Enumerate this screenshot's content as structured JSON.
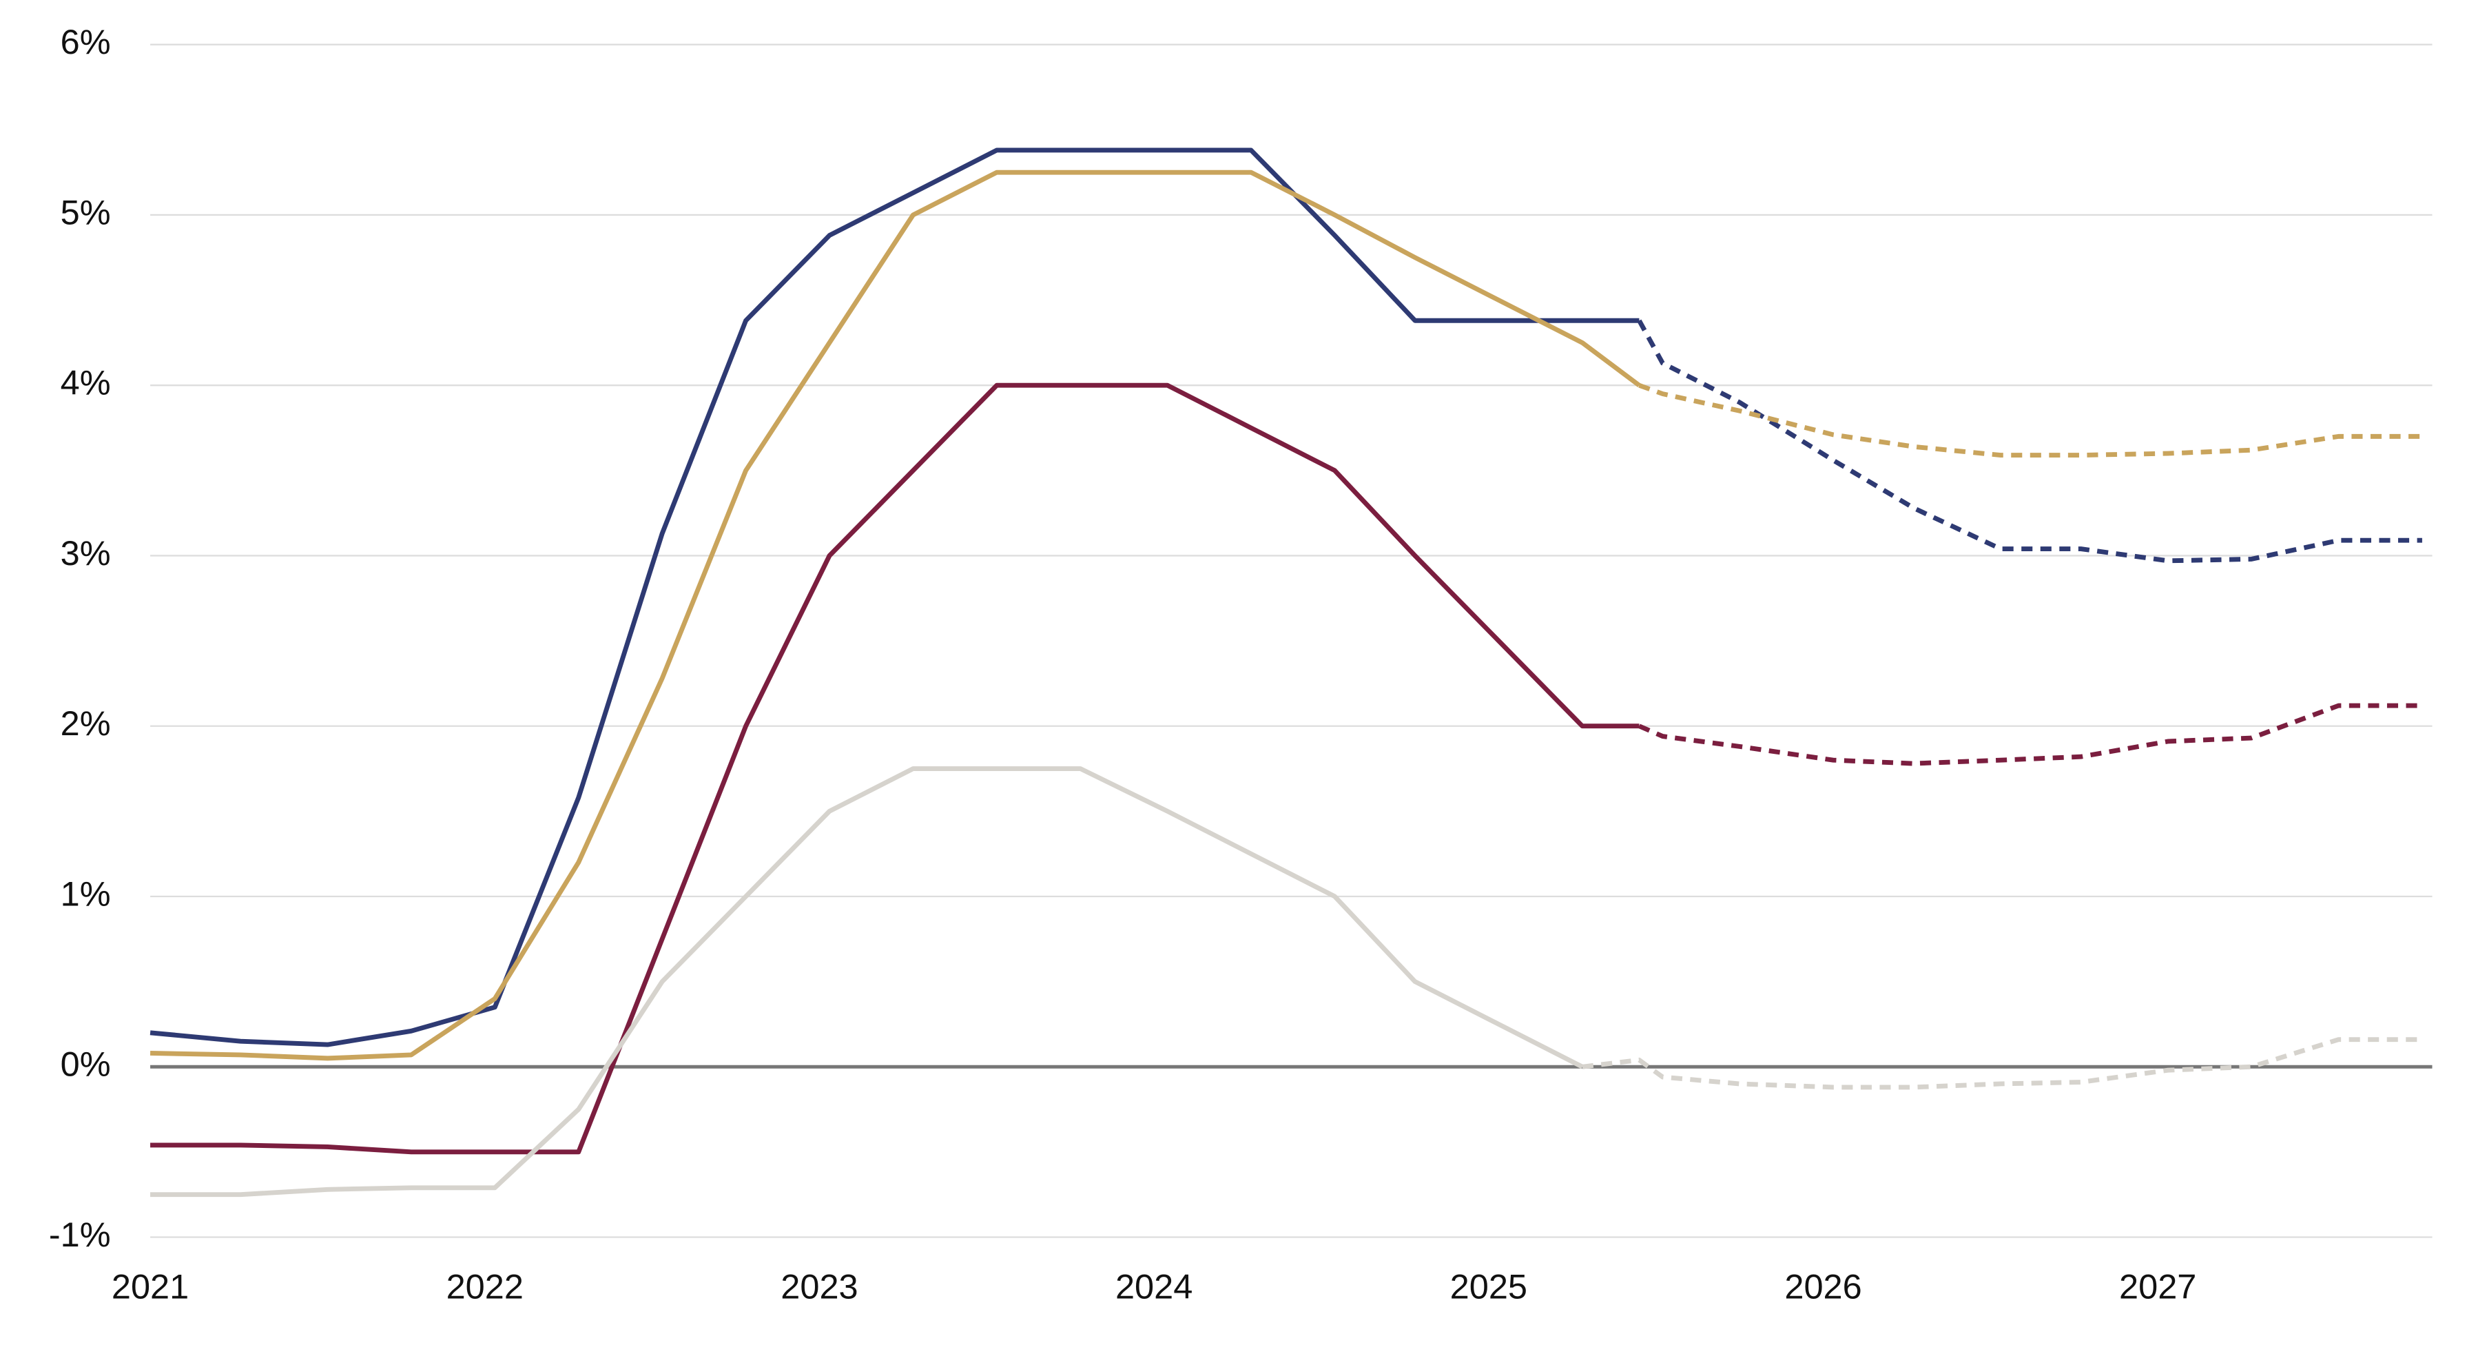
{
  "chart_data": {
    "type": "line",
    "xlim": [
      2021,
      2027.82
    ],
    "xticks": [
      2021,
      2022,
      2023,
      2024,
      2025,
      2026,
      2027
    ],
    "ylim": [
      -1,
      6
    ],
    "yticks": [
      {
        "value": -1,
        "label": "-1%"
      },
      {
        "value": 0,
        "label": "0%"
      },
      {
        "value": 1,
        "label": "1%"
      },
      {
        "value": 2,
        "label": "2%"
      },
      {
        "value": 3,
        "label": "3%"
      },
      {
        "value": 4,
        "label": "4%"
      },
      {
        "value": 5,
        "label": "5%"
      },
      {
        "value": 6,
        "label": "6%"
      }
    ],
    "grid": true,
    "zero_line": true,
    "series": [
      {
        "color": "#2e3a73",
        "style": "solid",
        "x": [
          2021.0,
          2021.27,
          2021.53,
          2021.78,
          2022.03,
          2022.28,
          2022.53,
          2022.78,
          2023.03,
          2023.28,
          2023.53,
          2023.78,
          2024.04,
          2024.29,
          2024.54,
          2024.78,
          2025.03,
          2025.28,
          2025.45
        ],
        "values": [
          0.2,
          0.15,
          0.13,
          0.21,
          0.35,
          1.58,
          3.13,
          4.38,
          4.88,
          5.13,
          5.38,
          5.38,
          5.38,
          5.38,
          4.88,
          4.38,
          4.38,
          4.38,
          4.38
        ]
      },
      {
        "color": "#2e3a73",
        "style": "dashed",
        "x": [
          2025.45,
          2025.52,
          2025.75,
          2026.03,
          2026.27,
          2026.53,
          2026.77,
          2027.03,
          2027.28,
          2027.54,
          2027.79
        ],
        "values": [
          4.38,
          4.13,
          3.9,
          3.56,
          3.28,
          3.04,
          3.04,
          2.97,
          2.98,
          3.09,
          3.09
        ]
      },
      {
        "color": "#c9a45c",
        "style": "solid",
        "x": [
          2021.0,
          2021.27,
          2021.53,
          2021.78,
          2022.03,
          2022.28,
          2022.53,
          2022.78,
          2023.03,
          2023.28,
          2023.53,
          2023.78,
          2024.04,
          2024.29,
          2024.54,
          2024.78,
          2025.03,
          2025.28,
          2025.45
        ],
        "values": [
          0.08,
          0.07,
          0.05,
          0.07,
          0.4,
          1.2,
          2.28,
          3.5,
          4.25,
          5.0,
          5.25,
          5.25,
          5.25,
          5.25,
          5.0,
          4.75,
          4.5,
          4.25,
          4.0
        ]
      },
      {
        "color": "#c9a45c",
        "style": "dashed",
        "x": [
          2025.45,
          2025.52,
          2025.75,
          2026.03,
          2026.27,
          2026.53,
          2026.77,
          2027.03,
          2027.28,
          2027.54,
          2027.79
        ],
        "values": [
          4.0,
          3.95,
          3.85,
          3.71,
          3.64,
          3.59,
          3.59,
          3.6,
          3.62,
          3.7,
          3.7
        ]
      },
      {
        "color": "#7b1e3f",
        "style": "solid",
        "x": [
          2021.0,
          2021.27,
          2021.53,
          2021.78,
          2022.03,
          2022.28,
          2022.53,
          2022.78,
          2023.03,
          2023.28,
          2023.53,
          2023.78,
          2024.04,
          2024.29,
          2024.54,
          2024.78,
          2025.03,
          2025.28,
          2025.45
        ],
        "values": [
          -0.46,
          -0.46,
          -0.47,
          -0.5,
          -0.5,
          -0.5,
          0.75,
          2.0,
          3.0,
          3.5,
          4.0,
          4.0,
          4.0,
          3.75,
          3.5,
          3.0,
          2.5,
          2.0,
          2.0
        ]
      },
      {
        "color": "#7b1e3f",
        "style": "dashed",
        "x": [
          2025.45,
          2025.52,
          2025.75,
          2026.03,
          2026.27,
          2026.53,
          2026.77,
          2027.03,
          2027.28,
          2027.54,
          2027.79
        ],
        "values": [
          2.0,
          1.94,
          1.88,
          1.8,
          1.78,
          1.8,
          1.82,
          1.91,
          1.93,
          2.12,
          2.12
        ]
      },
      {
        "color": "#d6d3cd",
        "style": "solid",
        "x": [
          2021.0,
          2021.27,
          2021.53,
          2021.78,
          2022.03,
          2022.28,
          2022.53,
          2022.78,
          2023.03,
          2023.28,
          2023.53,
          2023.78,
          2024.04,
          2024.29,
          2024.54,
          2024.78,
          2025.03,
          2025.28
        ],
        "values": [
          -0.75,
          -0.75,
          -0.72,
          -0.71,
          -0.71,
          -0.25,
          0.5,
          1.0,
          1.5,
          1.75,
          1.75,
          1.75,
          1.5,
          1.25,
          1.0,
          0.5,
          0.25,
          0.0
        ]
      },
      {
        "color": "#d6d3cd",
        "style": "dashed",
        "x": [
          2025.28,
          2025.45,
          2025.52,
          2025.75,
          2026.03,
          2026.27,
          2026.53,
          2026.77,
          2027.03,
          2027.28,
          2027.54,
          2027.79
        ],
        "values": [
          0.0,
          0.04,
          -0.06,
          -0.1,
          -0.12,
          -0.12,
          -0.1,
          -0.09,
          -0.02,
          0.0,
          0.16,
          0.16
        ]
      }
    ]
  }
}
